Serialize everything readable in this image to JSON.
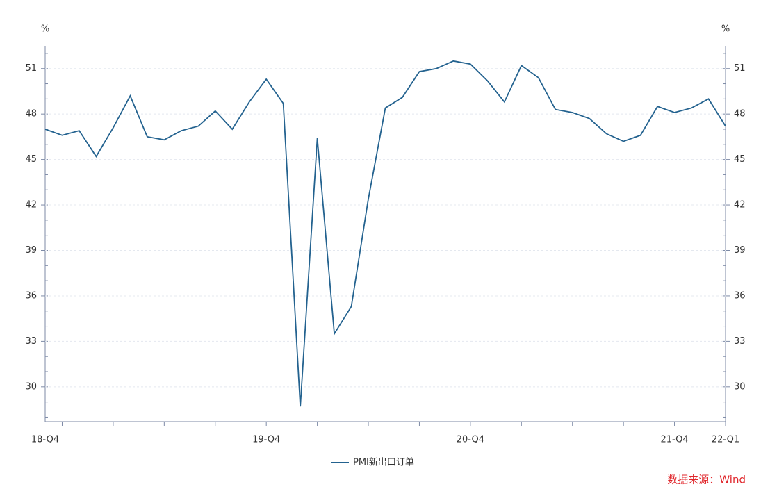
{
  "chart_data": {
    "type": "line",
    "y_unit": "%",
    "y2_unit": "%",
    "categories": [
      "18-Q4",
      null,
      null,
      null,
      null,
      null,
      null,
      null,
      null,
      null,
      null,
      null,
      null,
      "19-Q4",
      null,
      null,
      null,
      null,
      null,
      null,
      null,
      null,
      null,
      null,
      null,
      "20-Q4",
      null,
      null,
      null,
      null,
      null,
      null,
      null,
      null,
      null,
      null,
      null,
      "21-Q4",
      null,
      null,
      "22-Q1"
    ],
    "series": [
      {
        "name": "PMI新出口订单",
        "color": "#23628f",
        "values": [
          47.0,
          46.6,
          46.9,
          45.2,
          47.1,
          49.2,
          46.5,
          46.3,
          46.9,
          47.2,
          48.2,
          47.0,
          48.8,
          50.3,
          48.7,
          28.7,
          46.4,
          33.5,
          35.3,
          42.4,
          48.4,
          49.1,
          50.8,
          51.0,
          51.5,
          51.3,
          50.2,
          48.8,
          51.2,
          50.4,
          48.3,
          48.1,
          47.7,
          46.7,
          46.2,
          46.6,
          48.5,
          48.1,
          48.4,
          49.0,
          47.2
        ]
      }
    ],
    "ylim": [
      27.7,
      52.5
    ],
    "yticks": [
      30,
      33,
      36,
      39,
      42,
      45,
      48,
      51
    ],
    "y2lim": [
      27.7,
      52.5
    ],
    "y2ticks": [
      30,
      33,
      36,
      39,
      42,
      45,
      48,
      51
    ],
    "grid": true,
    "source": "数据来源：Wind"
  }
}
